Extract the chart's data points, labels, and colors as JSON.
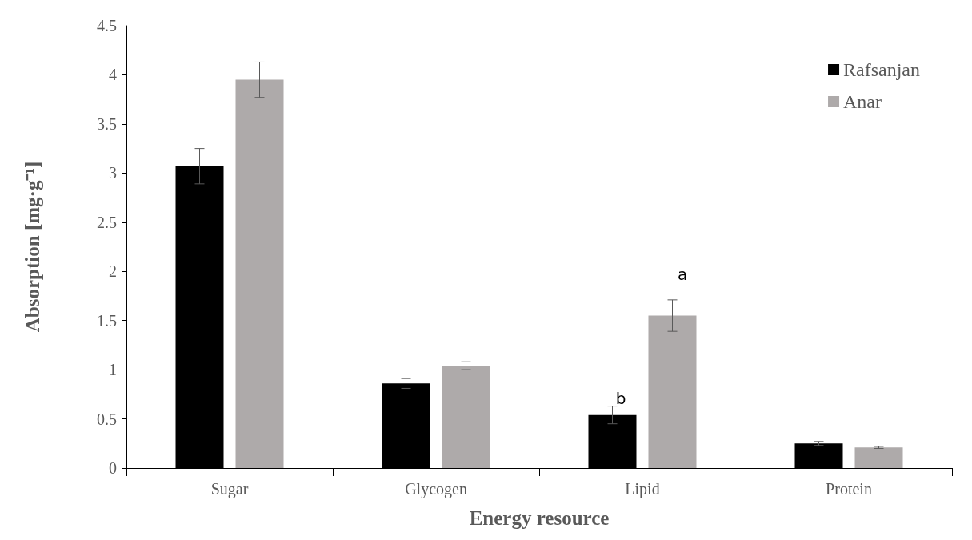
{
  "chart_data": {
    "type": "bar",
    "xlabel": "Energy resource",
    "ylabel": "Absorption [mg·g⁻¹]",
    "categories": [
      "Sugar",
      "Glycogen",
      "Lipid",
      "Protein"
    ],
    "series": [
      {
        "name": "Rafsanjan",
        "color": "#000000",
        "values": [
          3.07,
          0.86,
          0.54,
          0.25
        ],
        "errors": [
          0.18,
          0.05,
          0.09,
          0.02
        ]
      },
      {
        "name": "Anar",
        "color": "#aeaaaa",
        "values": [
          3.95,
          1.04,
          1.55,
          0.21
        ],
        "errors": [
          0.18,
          0.04,
          0.16,
          0.01
        ]
      }
    ],
    "ylim": [
      0,
      4.5
    ],
    "yticks": [
      0,
      0.5,
      1,
      1.5,
      2,
      2.5,
      3,
      3.5,
      4,
      4.5
    ],
    "grid": false,
    "legend": "top right",
    "annotations": [
      "b",
      "a"
    ]
  }
}
